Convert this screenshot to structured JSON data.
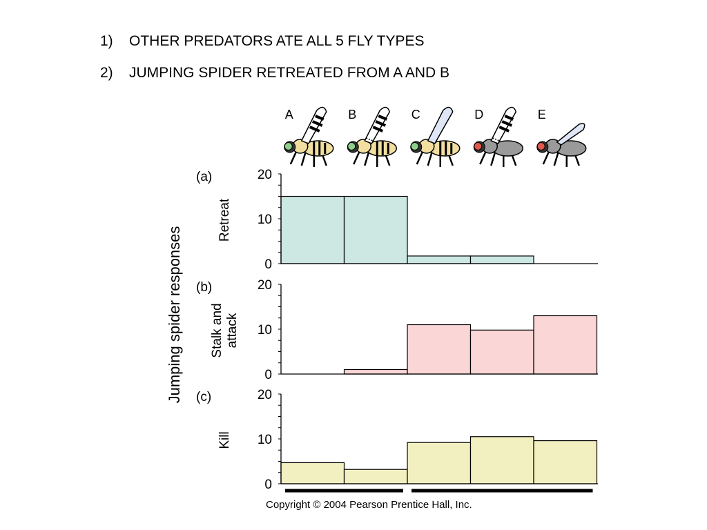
{
  "bullets": [
    {
      "num": "1)",
      "text": "OTHER PREDATORS ATE ALL 5 FLY TYPES"
    },
    {
      "num": "2)",
      "text": "JUMPING SPIDER RETREATED FROM A AND B"
    }
  ],
  "copyright": "Copyright © 2004 Pearson Prentice Hall, Inc.",
  "chart_data": {
    "type": "bar",
    "categories": [
      "A",
      "B",
      "C",
      "D",
      "E"
    ],
    "ylabel": "Jumping spider responses",
    "panels": [
      {
        "label": "(a)",
        "name_lines": [
          "Retreat"
        ],
        "values": [
          15,
          15,
          1.7,
          1.7,
          0
        ],
        "color": "#cde8e3",
        "ylim": [
          0,
          20
        ],
        "ticks": [
          0,
          10,
          20
        ]
      },
      {
        "label": "(b)",
        "name_lines": [
          "Stalk and",
          "attack"
        ],
        "values": [
          0,
          1,
          11,
          9.8,
          13
        ],
        "color": "#fbd6d6",
        "ylim": [
          0,
          20
        ],
        "ticks": [
          0,
          10,
          20
        ]
      },
      {
        "label": "(c)",
        "name_lines": [
          "Kill"
        ],
        "values": [
          4.7,
          3.2,
          9.2,
          10.5,
          9.6
        ],
        "color": "#f2efc0",
        "ylim": [
          0,
          20
        ],
        "ticks": [
          0,
          10,
          20
        ]
      }
    ],
    "groups": [
      {
        "from": "A",
        "to": "B"
      },
      {
        "from": "C",
        "to": "E"
      }
    ],
    "fly_colors": {
      "bee_body": "#f2dfa0",
      "bee_eye": "#8ed08a",
      "fly_body": "#9a9a9a",
      "fly_eye": "#e05a4a",
      "wing_clear": "#dfe6f5"
    },
    "fly_icons": [
      "bee-mimic-banded-wing",
      "bee-mimic-banded-wing-dashed",
      "bee-clear-wing",
      "housefly-banded-wing",
      "housefly-clear-wing"
    ]
  }
}
